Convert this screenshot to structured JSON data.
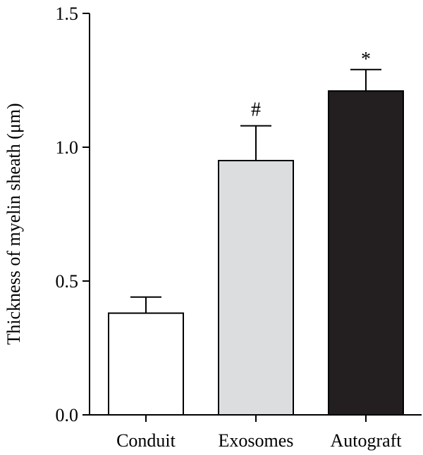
{
  "chart_data": {
    "type": "bar",
    "categories": [
      "Conduit",
      "Exosomes",
      "Autograft"
    ],
    "values": [
      0.38,
      0.95,
      1.21
    ],
    "errors": [
      0.06,
      0.13,
      0.08
    ],
    "annotations": [
      "",
      "#",
      "*"
    ],
    "bar_colors": [
      "#ffffff",
      "#dcdddf",
      "#231f20"
    ],
    "ylabel": "Thickness of myelin sheath (μm)",
    "ylim": [
      0,
      1.5
    ],
    "yticks": [
      "0.0",
      "0.5",
      "1.0",
      "1.5"
    ],
    "grid": false
  }
}
